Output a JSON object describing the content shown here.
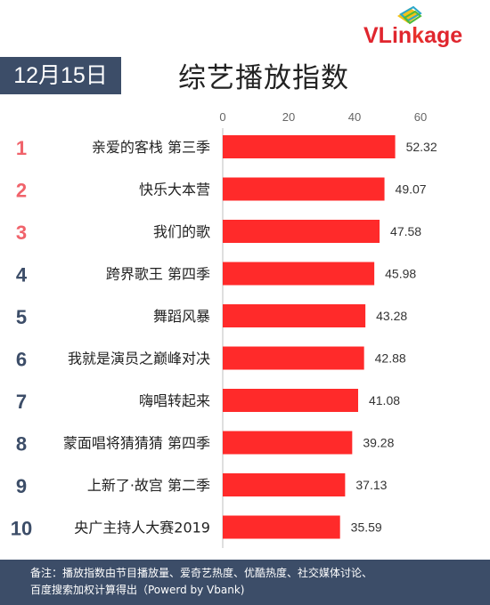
{
  "brand": {
    "name_main": "VLin",
    "name_accent": "k",
    "name_tail": "age",
    "color": "#e0262e"
  },
  "header": {
    "date": "12月15日",
    "title": "综艺播放指数"
  },
  "chart_data": {
    "type": "bar",
    "orientation": "horizontal",
    "categories": [
      "亲爱的客栈 第三季",
      "快乐大本营",
      "我们的歌",
      "跨界歌王 第四季",
      "舞蹈风暴",
      "我就是演员之巅峰对决",
      "嗨唱转起来",
      "蒙面唱将猜猜猜 第四季",
      "上新了·故宫 第二季",
      "央广主持人大赛2019"
    ],
    "ranks": [
      "1",
      "2",
      "3",
      "4",
      "5",
      "6",
      "7",
      "8",
      "9",
      "10"
    ],
    "values": [
      52.32,
      49.07,
      47.58,
      45.98,
      43.28,
      42.88,
      41.08,
      39.28,
      37.13,
      35.59
    ],
    "value_labels": [
      "52.32",
      "49.07",
      "47.58",
      "45.98",
      "43.28",
      "42.88",
      "41.08",
      "39.28",
      "37.13",
      "35.59"
    ],
    "xticks": [
      "0",
      "20",
      "40",
      "60"
    ],
    "xlim": [
      0,
      60
    ],
    "title": "综艺播放指数",
    "legend": "none",
    "grid": false,
    "bar_color": "#ff2a2a",
    "top_rank_color": "#f0636b",
    "rank_color": "#3c4d68"
  },
  "footer": {
    "line1": "备注：播放指数由节目播放量、爱奇艺热度、优酷热度、社交媒体讨论、",
    "line2": "百度搜索加权计算得出（Powerd by Vbank)"
  }
}
